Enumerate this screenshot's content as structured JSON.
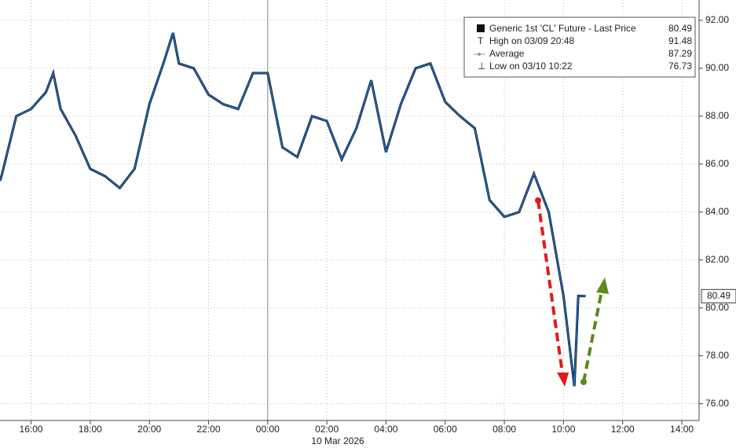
{
  "chart_data": {
    "type": "line",
    "date_label": "10 Mar 2026",
    "series": [
      {
        "name": "Generic 1st 'CL' Future - Last Price",
        "color": "#1f6fd1",
        "last_value": 80.49,
        "x": [
          "14:57",
          "15:00",
          "15:30",
          "16:00",
          "16:30",
          "16:45",
          "17:00",
          "17:30",
          "18:00",
          "18:30",
          "19:00",
          "19:30",
          "20:00",
          "20:30",
          "20:48",
          "21:00",
          "21:30",
          "22:00",
          "22:30",
          "23:00",
          "23:30",
          "00:00",
          "00:30",
          "01:00",
          "01:30",
          "02:00",
          "02:30",
          "03:00",
          "03:30",
          "04:00",
          "04:30",
          "05:00",
          "05:30",
          "06:00",
          "06:30",
          "07:00",
          "07:30",
          "08:00",
          "08:30",
          "09:00",
          "09:30",
          "10:00",
          "10:22",
          "10:30",
          "10:45"
        ],
        "values": [
          85.3,
          85.5,
          88.0,
          88.3,
          89.0,
          89.8,
          88.3,
          87.2,
          85.8,
          85.5,
          85.0,
          85.8,
          88.5,
          90.3,
          91.48,
          90.2,
          90.0,
          88.9,
          88.5,
          88.3,
          89.8,
          89.8,
          86.7,
          86.3,
          88.0,
          87.8,
          86.2,
          87.5,
          89.5,
          86.5,
          88.5,
          90.0,
          90.2,
          88.6,
          88.0,
          87.5,
          84.5,
          83.8,
          84.0,
          85.6,
          84.0,
          80.5,
          76.73,
          80.5,
          80.49
        ]
      }
    ],
    "stats": [
      {
        "label": "High on 03/09 20:48",
        "value": 91.48
      },
      {
        "label": "Average",
        "value": 87.29
      },
      {
        "label": "Low on 03/10 10:22",
        "value": 76.73
      }
    ],
    "xlim": [
      "14:57",
      "14:35"
    ],
    "xticks": [
      "16:00",
      "18:00",
      "20:00",
      "22:00",
      "00:00",
      "02:00",
      "04:00",
      "06:00",
      "08:00",
      "10:00",
      "12:00",
      "14:00"
    ],
    "ylim": [
      75.3,
      92.85
    ],
    "yticks": [
      {
        "value": 76,
        "label": "76.00"
      },
      {
        "value": 78,
        "label": "78.00"
      },
      {
        "value": 80,
        "label": "80.00"
      },
      {
        "value": 82,
        "label": "82.00"
      },
      {
        "value": 84,
        "label": "84.00"
      },
      {
        "value": 86,
        "label": "86.00"
      },
      {
        "value": 88,
        "label": "88.00"
      },
      {
        "value": 90,
        "label": "90.00"
      },
      {
        "value": 92,
        "label": "92.00"
      }
    ],
    "grid": true
  }
}
